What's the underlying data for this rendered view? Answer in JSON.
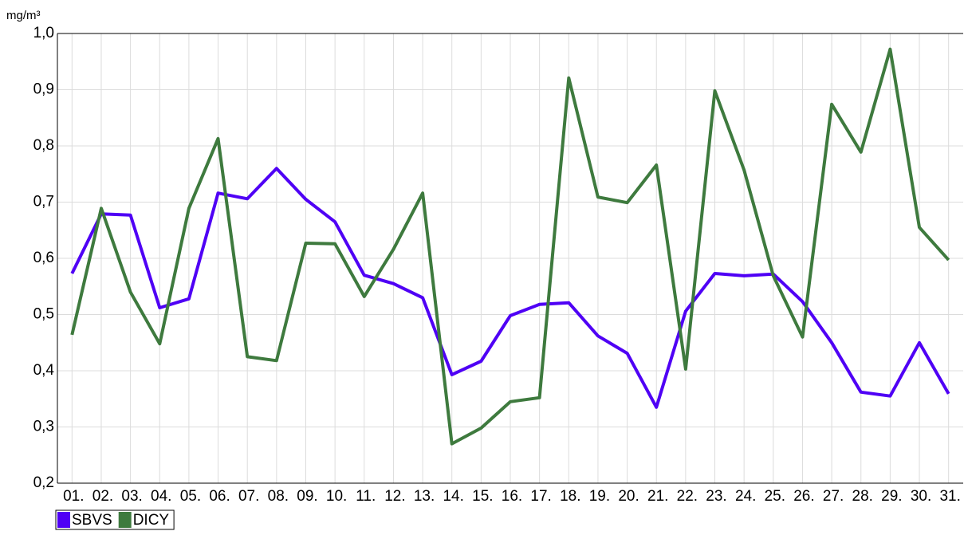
{
  "chart_data": {
    "type": "line",
    "y_label": "mg/m³",
    "categories": [
      "01.",
      "02.",
      "03.",
      "04.",
      "05.",
      "06.",
      "07.",
      "08.",
      "09.",
      "10.",
      "11.",
      "12.",
      "13.",
      "14.",
      "15.",
      "16.",
      "17.",
      "18.",
      "19.",
      "20.",
      "21.",
      "22.",
      "23.",
      "24.",
      "25.",
      "26.",
      "27.",
      "28.",
      "29.",
      "30.",
      "31."
    ],
    "series": [
      {
        "name": "SBVS",
        "color": "#4f00f5",
        "values": [
          0.573,
          0.679,
          0.677,
          0.512,
          0.528,
          0.716,
          0.706,
          0.76,
          0.705,
          0.665,
          0.57,
          0.555,
          0.53,
          0.393,
          0.417,
          0.498,
          0.518,
          0.521,
          0.462,
          0.431,
          0.335,
          0.506,
          0.573,
          0.569,
          0.572,
          0.523,
          0.45,
          0.362,
          0.355,
          0.45,
          0.359
        ]
      },
      {
        "name": "DICY",
        "color": "#3e7a3e",
        "values": [
          0.464,
          0.689,
          0.54,
          0.448,
          0.689,
          0.813,
          0.425,
          0.418,
          0.627,
          0.626,
          0.532,
          0.616,
          0.716,
          0.27,
          0.298,
          0.345,
          0.352,
          0.921,
          0.709,
          0.699,
          0.766,
          0.403,
          0.898,
          0.757,
          0.569,
          0.46,
          0.874,
          0.789,
          0.972,
          0.655,
          0.597
        ]
      }
    ],
    "ylim": [
      0.2,
      1.0
    ],
    "yticks": [
      {
        "value": 0.2,
        "label": "0,2"
      },
      {
        "value": 0.3,
        "label": "0,3"
      },
      {
        "value": 0.4,
        "label": "0,4"
      },
      {
        "value": 0.5,
        "label": "0,5"
      },
      {
        "value": 0.6,
        "label": "0,6"
      },
      {
        "value": 0.7,
        "label": "0,7"
      },
      {
        "value": 0.8,
        "label": "0,8"
      },
      {
        "value": 0.9,
        "label": "0,9"
      },
      {
        "value": 1.0,
        "label": "1,0"
      }
    ],
    "grid": true,
    "legend": "bottom-left"
  }
}
